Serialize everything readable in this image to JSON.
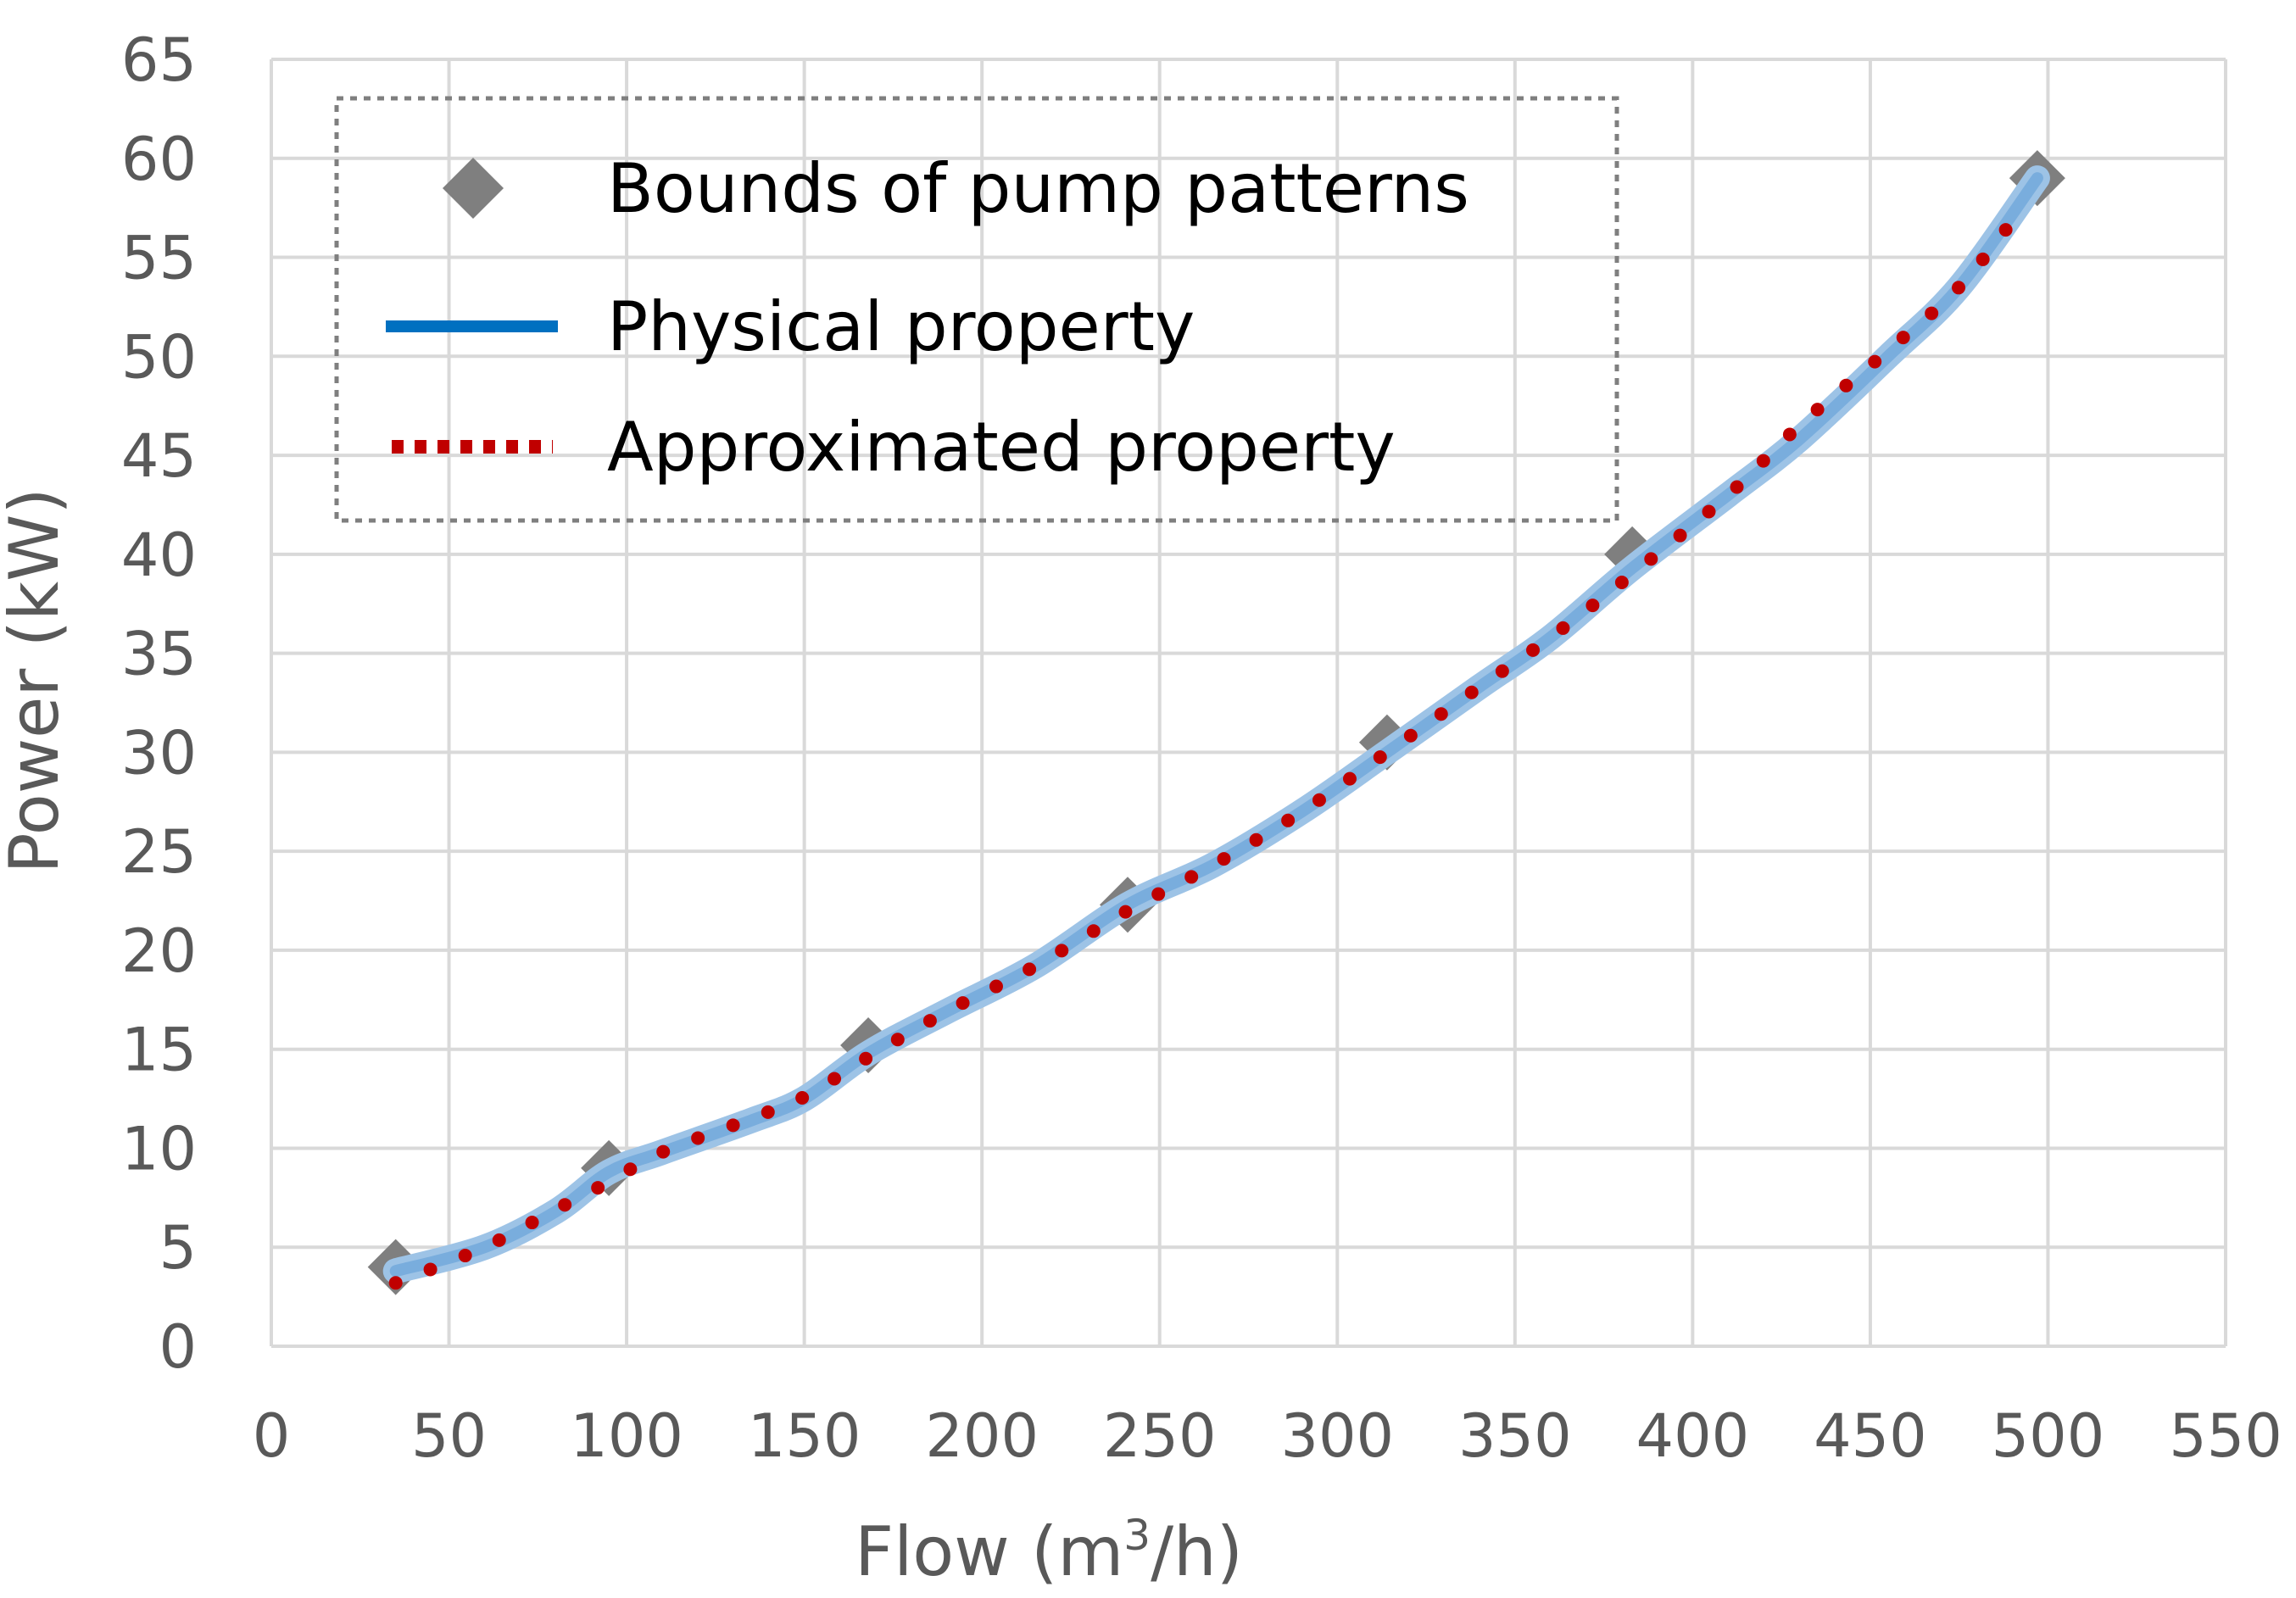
{
  "chart_data": {
    "type": "scatter",
    "title": "",
    "xlabel": {
      "main": "Flow (m",
      "sup": "3",
      "tail": "/h)"
    },
    "ylabel": "Power (kW)",
    "xlim": [
      0,
      550
    ],
    "ylim": [
      0,
      65
    ],
    "xticks": [
      "0",
      "50",
      "100",
      "150",
      "200",
      "250",
      "300",
      "350",
      "400",
      "450",
      "500",
      "550"
    ],
    "yticks": [
      "0",
      "5",
      "10",
      "15",
      "20",
      "25",
      "30",
      "35",
      "40",
      "45",
      "50",
      "55",
      "60",
      "65"
    ],
    "grid": true,
    "legend_position": "top-left",
    "series": [
      {
        "name": "Bounds of pump patterns",
        "kind": "markers",
        "marker": "diamond",
        "color": "#7f7f7f",
        "points": [
          [
            35,
            4
          ],
          [
            95,
            9
          ],
          [
            168,
            15.2
          ],
          [
            241,
            22.3
          ],
          [
            314,
            30.5
          ],
          [
            383,
            40
          ],
          [
            497,
            59
          ]
        ]
      },
      {
        "name": "Physical property",
        "kind": "line",
        "color": "#0070c0",
        "halo_color": "#9dc3e6",
        "points": [
          [
            35,
            3.8
          ],
          [
            60,
            5
          ],
          [
            80,
            6.8
          ],
          [
            95,
            8.8
          ],
          [
            110,
            9.8
          ],
          [
            135,
            11.4
          ],
          [
            150,
            12.5
          ],
          [
            168,
            14.8
          ],
          [
            190,
            16.9
          ],
          [
            215,
            19.2
          ],
          [
            241,
            22.3
          ],
          [
            265,
            24.3
          ],
          [
            290,
            27.0
          ],
          [
            314,
            30.0
          ],
          [
            340,
            33.3
          ],
          [
            360,
            35.8
          ],
          [
            383,
            39.3
          ],
          [
            410,
            43.0
          ],
          [
            430,
            45.8
          ],
          [
            455,
            50.0
          ],
          [
            475,
            53.5
          ],
          [
            497,
            59.0
          ]
        ]
      },
      {
        "name": "Approximated property",
        "kind": "dotted-line",
        "color": "#c00000",
        "points": [
          [
            35,
            3.2
          ],
          [
            60,
            5
          ],
          [
            80,
            6.9
          ],
          [
            95,
            8.3
          ],
          [
            110,
            9.8
          ],
          [
            135,
            11.5
          ],
          [
            150,
            12.6
          ],
          [
            168,
            14.6
          ],
          [
            190,
            16.9
          ],
          [
            215,
            19.2
          ],
          [
            241,
            22.0
          ],
          [
            265,
            24.3
          ],
          [
            290,
            27.0
          ],
          [
            314,
            30.0
          ],
          [
            340,
            33.3
          ],
          [
            360,
            35.8
          ],
          [
            383,
            39.0
          ],
          [
            410,
            43.0
          ],
          [
            430,
            46.5
          ],
          [
            455,
            50.3
          ],
          [
            475,
            53.5
          ],
          [
            492,
            57.3
          ]
        ]
      }
    ]
  }
}
